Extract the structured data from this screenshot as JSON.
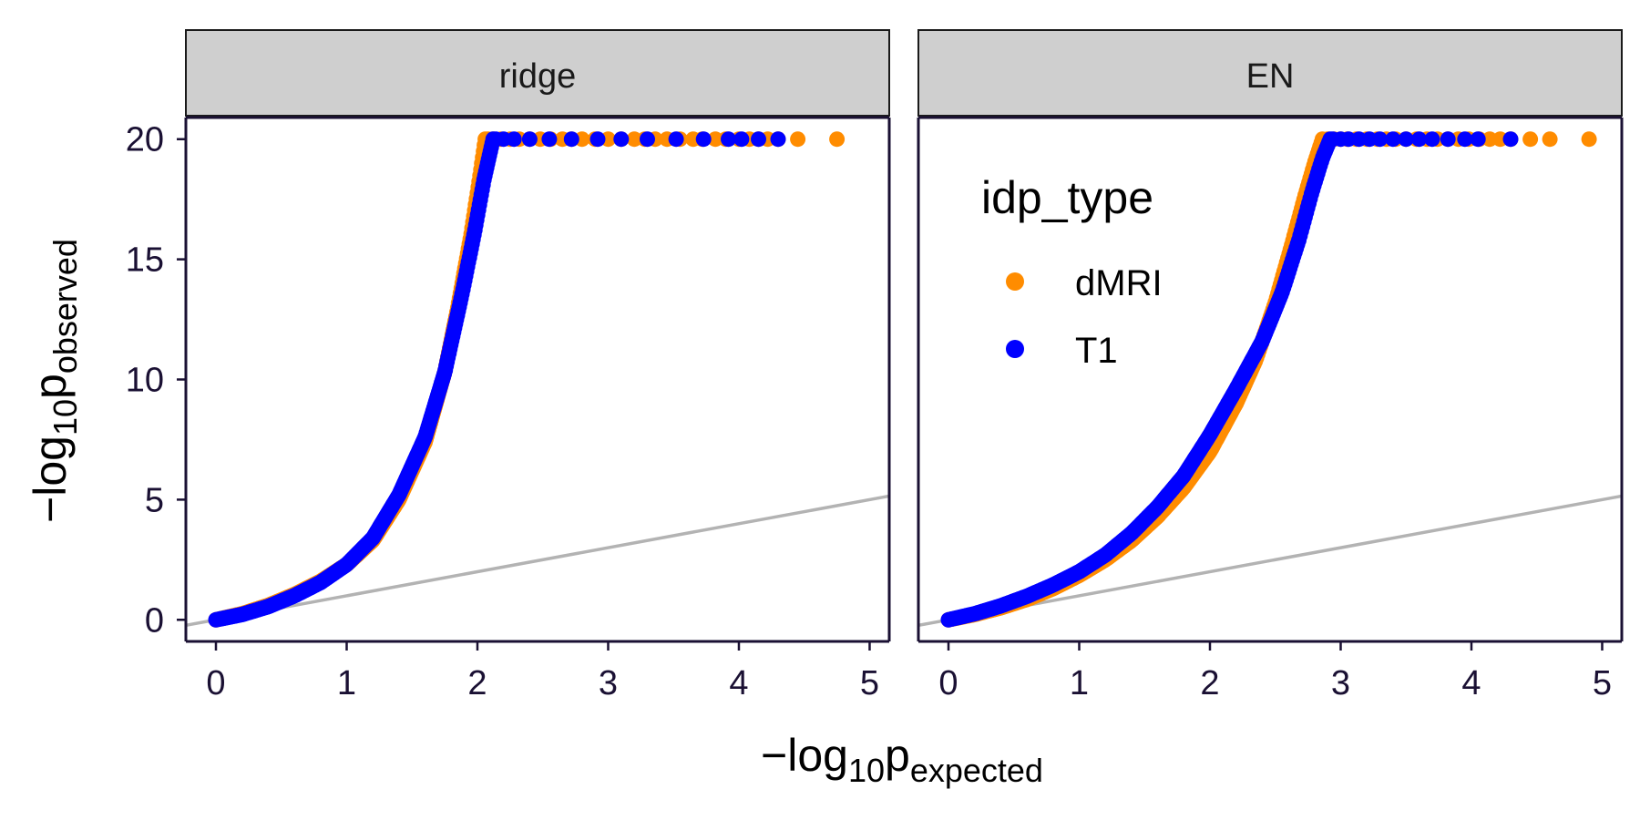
{
  "chart_data": {
    "type": "scatter",
    "subtype": "qq-plot",
    "x_axis": {
      "label_main": "−log",
      "label_sub": "10",
      "label_var": "p",
      "label_var_sub": "expected",
      "range": [
        -0.23,
        5.15
      ],
      "ticks": [
        "0",
        "1",
        "2",
        "3",
        "4",
        "5"
      ]
    },
    "y_axis": {
      "label_main": "−log",
      "label_sub": "10",
      "label_var": "p",
      "label_var_sub": "observed",
      "range": [
        -0.9,
        20.9
      ],
      "ticks": [
        "0",
        "5",
        "10",
        "15",
        "20"
      ]
    },
    "reference_line": {
      "slope": 1,
      "intercept": 0,
      "color": "#b3b3b3"
    },
    "colors": {
      "dMRI": "#ff8c00",
      "T1": "#0000ff"
    },
    "legend": {
      "title": "idp_type",
      "placement": "inside-top-left-of-right-panel",
      "items": [
        {
          "label": "dMRI",
          "color": "#ff8c00"
        },
        {
          "label": "T1",
          "color": "#0000ff"
        }
      ]
    },
    "y_cap": 20,
    "facets": [
      {
        "label": "ridge",
        "series": [
          {
            "name": "dMRI",
            "curve": [
              [
                0,
                0
              ],
              [
                0.2,
                0.25
              ],
              [
                0.4,
                0.6
              ],
              [
                0.6,
                1.05
              ],
              [
                0.8,
                1.6
              ],
              [
                1.0,
                2.3
              ],
              [
                1.2,
                3.3
              ],
              [
                1.4,
                5.0
              ],
              [
                1.6,
                7.4
              ],
              [
                1.75,
                10.3
              ],
              [
                1.85,
                13.0
              ],
              [
                1.95,
                16.0
              ],
              [
                2.02,
                18.5
              ],
              [
                2.06,
                20.0
              ]
            ],
            "capped_x": [
              2.08,
              2.12,
              2.18,
              2.25,
              2.32,
              2.4,
              2.48,
              2.56,
              2.65,
              2.72,
              2.8,
              2.9,
              3.0,
              3.1,
              3.2,
              3.28,
              3.36,
              3.45,
              3.55,
              3.65,
              3.72,
              3.82,
              3.9,
              4.0,
              4.08,
              4.15,
              4.22,
              4.3,
              4.45,
              4.75
            ]
          },
          {
            "name": "T1",
            "curve": [
              [
                0,
                0
              ],
              [
                0.2,
                0.22
              ],
              [
                0.4,
                0.55
              ],
              [
                0.6,
                1.0
              ],
              [
                0.8,
                1.55
              ],
              [
                1.0,
                2.3
              ],
              [
                1.2,
                3.4
              ],
              [
                1.4,
                5.2
              ],
              [
                1.6,
                7.6
              ],
              [
                1.75,
                10.3
              ],
              [
                1.88,
                13.5
              ],
              [
                1.98,
                16.2
              ],
              [
                2.05,
                18.3
              ],
              [
                2.12,
                20.0
              ]
            ],
            "capped_x": [
              2.14,
              2.2,
              2.28,
              2.4,
              2.55,
              2.72,
              2.92,
              3.1,
              3.3,
              3.52,
              3.73,
              3.92,
              4.02,
              4.15,
              4.3
            ]
          }
        ]
      },
      {
        "label": "EN",
        "series": [
          {
            "name": "dMRI",
            "curve": [
              [
                0,
                0
              ],
              [
                0.2,
                0.22
              ],
              [
                0.4,
                0.5
              ],
              [
                0.6,
                0.85
              ],
              [
                0.8,
                1.3
              ],
              [
                1.0,
                1.85
              ],
              [
                1.2,
                2.5
              ],
              [
                1.4,
                3.3
              ],
              [
                1.6,
                4.3
              ],
              [
                1.8,
                5.5
              ],
              [
                2.0,
                7.0
              ],
              [
                2.2,
                9.0
              ],
              [
                2.35,
                10.8
              ],
              [
                2.5,
                13.2
              ],
              [
                2.62,
                15.5
              ],
              [
                2.72,
                17.5
              ],
              [
                2.8,
                19.0
              ],
              [
                2.86,
                20.0
              ]
            ],
            "capped_x": [
              2.9,
              2.95,
              3.0,
              3.05,
              3.12,
              3.2,
              3.28,
              3.35,
              3.42,
              3.5,
              3.58,
              3.66,
              3.74,
              3.82,
              3.9,
              3.98,
              4.06,
              4.14,
              4.22,
              4.3,
              4.45,
              4.6,
              4.9
            ]
          },
          {
            "name": "T1",
            "curve": [
              [
                0,
                0
              ],
              [
                0.2,
                0.25
              ],
              [
                0.4,
                0.58
              ],
              [
                0.6,
                0.98
              ],
              [
                0.8,
                1.45
              ],
              [
                1.0,
                2.0
              ],
              [
                1.2,
                2.7
              ],
              [
                1.4,
                3.6
              ],
              [
                1.6,
                4.7
              ],
              [
                1.8,
                6.0
              ],
              [
                2.0,
                7.7
              ],
              [
                2.2,
                9.6
              ],
              [
                2.4,
                11.6
              ],
              [
                2.55,
                13.6
              ],
              [
                2.68,
                15.8
              ],
              [
                2.78,
                17.8
              ],
              [
                2.86,
                19.2
              ],
              [
                2.92,
                20.0
              ]
            ],
            "capped_x": [
              2.94,
              3.0,
              3.06,
              3.14,
              3.22,
              3.3,
              3.4,
              3.5,
              3.6,
              3.7,
              3.82,
              3.95,
              4.05,
              4.3
            ]
          }
        ]
      }
    ]
  }
}
